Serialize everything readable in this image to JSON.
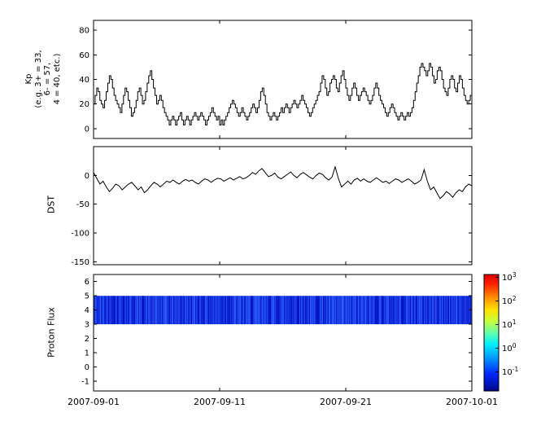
{
  "figure": {
    "background": "#ffffff",
    "axis_color": "#000000",
    "series_color": "#000000"
  },
  "x_axis": {
    "tick_labels": [
      "2007-09-01",
      "2007-09-11",
      "2007-09-21",
      "2007-10-01"
    ],
    "tick_days": [
      0,
      10,
      20,
      30
    ],
    "range_days": [
      0,
      30
    ]
  },
  "panels": {
    "kp": {
      "ylabel_lines": [
        "Kp",
        "(e.g. 3+ = 33,",
        "6- = 57,",
        "4 = 40, etc.)"
      ],
      "yticks": [
        0,
        20,
        40,
        60,
        80
      ]
    },
    "dst": {
      "ylabel": "DST",
      "yticks": [
        0,
        -50,
        -100,
        -150
      ]
    },
    "proton": {
      "ylabel": "Proton Flux",
      "yticks": [
        6,
        5,
        4,
        3,
        2,
        1,
        0,
        -1
      ]
    }
  },
  "colorbar": {
    "scale": "log",
    "tick_exponents": [
      3,
      2,
      1,
      0,
      -1
    ],
    "gradient_stops": [
      [
        "0%",
        "#dd0000"
      ],
      [
        "8%",
        "#ff2000"
      ],
      [
        "20%",
        "#ff9000"
      ],
      [
        "30%",
        "#ffe000"
      ],
      [
        "40%",
        "#c8ff3c"
      ],
      [
        "50%",
        "#64ffaa"
      ],
      [
        "60%",
        "#00f0ff"
      ],
      [
        "72%",
        "#0096ff"
      ],
      [
        "85%",
        "#0028ff"
      ],
      [
        "100%",
        "#000687"
      ]
    ]
  },
  "chart_data": [
    {
      "type": "line",
      "style": "steps",
      "name": "Kp",
      "ylabel": "Kp (e.g. 3+ = 33, 6- = 57, 4 = 40, etc.)",
      "ylim": [
        -8,
        88
      ],
      "yticks": [
        0,
        20,
        40,
        60,
        80
      ],
      "x_range_days": [
        0,
        30
      ],
      "x_step_days": 0.125,
      "x_tick_labels": [
        "2007-09-01",
        "2007-09-11",
        "2007-09-21",
        "2007-10-01"
      ],
      "values": [
        20,
        27,
        33,
        30,
        23,
        20,
        17,
        23,
        30,
        37,
        43,
        40,
        33,
        27,
        23,
        20,
        17,
        13,
        20,
        27,
        33,
        30,
        23,
        17,
        10,
        13,
        17,
        23,
        30,
        33,
        27,
        20,
        23,
        30,
        37,
        43,
        47,
        40,
        33,
        27,
        20,
        23,
        27,
        23,
        17,
        13,
        10,
        7,
        3,
        7,
        10,
        7,
        3,
        7,
        10,
        13,
        7,
        3,
        7,
        10,
        7,
        3,
        7,
        10,
        13,
        10,
        7,
        10,
        13,
        10,
        7,
        3,
        7,
        10,
        13,
        17,
        13,
        10,
        7,
        10,
        3,
        7,
        3,
        7,
        10,
        13,
        17,
        20,
        23,
        20,
        17,
        13,
        10,
        13,
        17,
        13,
        10,
        7,
        10,
        13,
        17,
        20,
        17,
        13,
        17,
        23,
        30,
        33,
        27,
        20,
        13,
        10,
        7,
        10,
        13,
        10,
        7,
        10,
        13,
        17,
        13,
        17,
        20,
        17,
        13,
        17,
        20,
        23,
        20,
        17,
        20,
        23,
        27,
        23,
        20,
        17,
        13,
        10,
        13,
        17,
        20,
        23,
        27,
        30,
        37,
        43,
        40,
        33,
        27,
        30,
        37,
        40,
        43,
        40,
        33,
        30,
        37,
        43,
        47,
        40,
        33,
        27,
        23,
        27,
        33,
        37,
        33,
        27,
        23,
        27,
        30,
        33,
        30,
        27,
        23,
        20,
        23,
        27,
        33,
        37,
        33,
        27,
        23,
        20,
        17,
        13,
        10,
        13,
        17,
        20,
        17,
        13,
        10,
        7,
        10,
        13,
        10,
        7,
        10,
        13,
        10,
        13,
        17,
        23,
        30,
        37,
        43,
        50,
        53,
        50,
        47,
        43,
        47,
        53,
        50,
        43,
        37,
        40,
        47,
        50,
        47,
        40,
        33,
        30,
        27,
        33,
        40,
        43,
        40,
        33,
        30,
        37,
        43,
        40,
        33,
        27,
        23,
        20,
        23,
        27
      ]
    },
    {
      "type": "line",
      "name": "DST",
      "ylabel": "DST",
      "ylim": [
        -155,
        50
      ],
      "yticks": [
        0,
        -50,
        -100,
        -150
      ],
      "x_range_days": [
        0,
        30
      ],
      "x_step_days": 0.25,
      "x_tick_labels": [
        "2007-09-01",
        "2007-09-11",
        "2007-09-21",
        "2007-10-01"
      ],
      "values": [
        5,
        -5,
        -15,
        -10,
        -20,
        -28,
        -22,
        -15,
        -18,
        -25,
        -20,
        -15,
        -12,
        -18,
        -25,
        -20,
        -30,
        -25,
        -18,
        -12,
        -15,
        -20,
        -15,
        -10,
        -12,
        -8,
        -12,
        -15,
        -10,
        -7,
        -10,
        -8,
        -12,
        -15,
        -10,
        -6,
        -8,
        -12,
        -8,
        -5,
        -6,
        -10,
        -7,
        -4,
        -8,
        -5,
        -2,
        -6,
        -4,
        0,
        5,
        2,
        8,
        12,
        5,
        -2,
        0,
        4,
        -3,
        -6,
        -2,
        2,
        6,
        0,
        -4,
        2,
        5,
        1,
        -3,
        -6,
        0,
        4,
        2,
        -4,
        -8,
        -3,
        15,
        -5,
        -20,
        -15,
        -10,
        -15,
        -8,
        -5,
        -10,
        -6,
        -10,
        -12,
        -8,
        -4,
        -8,
        -12,
        -10,
        -14,
        -10,
        -6,
        -8,
        -12,
        -9,
        -6,
        -10,
        -15,
        -12,
        -8,
        10,
        -10,
        -25,
        -20,
        -30,
        -40,
        -35,
        -28,
        -32,
        -38,
        -30,
        -25,
        -28,
        -20,
        -15,
        -18
      ]
    },
    {
      "type": "heatmap",
      "name": "Proton Flux",
      "ylabel": "Proton Flux",
      "ylim": [
        -1.7,
        6.5
      ],
      "yticks": [
        6,
        5,
        4,
        3,
        2,
        1,
        0,
        -1
      ],
      "band": {
        "y_min": 3,
        "y_max": 5,
        "approx_value": 0.15,
        "base_color": "#0018cc"
      },
      "colorbar": {
        "scale": "log",
        "tick_exponents": [
          3,
          2,
          1,
          0,
          -1
        ],
        "colormap": "jet"
      },
      "x_range_days": [
        0,
        30
      ],
      "x_tick_labels": [
        "2007-09-01",
        "2007-09-11",
        "2007-09-21",
        "2007-10-01"
      ]
    }
  ]
}
